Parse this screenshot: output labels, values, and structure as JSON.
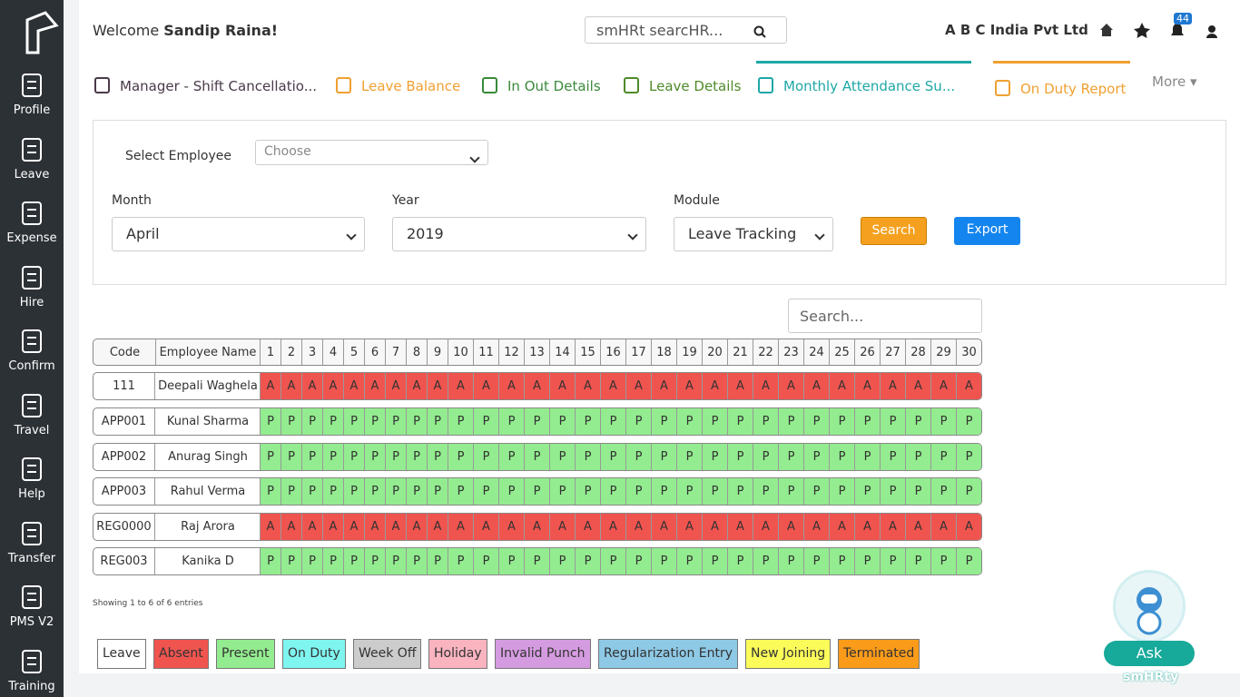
{
  "sidebar": [
    "Profile",
    "Leave",
    "Expense",
    "Hire",
    "Confirm",
    "Travel",
    "Help",
    "Transfer",
    "PMS V2",
    "Training"
  ],
  "header": {
    "welcome": "Welcome",
    "user": "Sandip Raina!",
    "search_placeholder": "smHRt searcHR...",
    "company": "A B C India Pvt Ltd",
    "notifications": 44
  },
  "tabs": [
    "Manager - Shift Cancellatio...",
    "Leave Balance",
    "In Out Details",
    "Leave Details",
    "Monthly Attendance Su...",
    "On Duty Report"
  ],
  "more": "More",
  "filters": {
    "select_employee_label": "Select Employee",
    "select_employee_placeholder": "Choose",
    "month_label": "Month",
    "month": "April",
    "year_label": "Year",
    "year": "2019",
    "module_label": "Module",
    "module": "Leave Tracking",
    "search_button": "Search",
    "export_button": "Export"
  },
  "table": {
    "search_placeholder": "Search...",
    "columns": [
      "Code",
      "Employee Name"
    ],
    "days": [
      1,
      2,
      3,
      4,
      5,
      6,
      7,
      8,
      9,
      10,
      11,
      12,
      13,
      14,
      15,
      16,
      17,
      18,
      19,
      20,
      21,
      22,
      23,
      24,
      25,
      26,
      27,
      28,
      29,
      30
    ],
    "status_colors": {
      "A": "#f0544f",
      "P": "#93ec8f"
    },
    "rows": [
      {
        "code": "111",
        "name": "Deepali Waghela",
        "attendance": [
          "A",
          "A",
          "A",
          "A",
          "A",
          "A",
          "A",
          "A",
          "A",
          "A",
          "A",
          "A",
          "A",
          "A",
          "A",
          "A",
          "A",
          "A",
          "A",
          "A",
          "A",
          "A",
          "A",
          "A",
          "A",
          "A",
          "A",
          "A",
          "A",
          "A"
        ]
      },
      {
        "code": "APP001",
        "name": "Kunal Sharma",
        "attendance": [
          "P",
          "P",
          "P",
          "P",
          "P",
          "P",
          "P",
          "P",
          "P",
          "P",
          "P",
          "P",
          "P",
          "P",
          "P",
          "P",
          "P",
          "P",
          "P",
          "P",
          "P",
          "P",
          "P",
          "P",
          "P",
          "P",
          "P",
          "P",
          "P",
          "P"
        ]
      },
      {
        "code": "APP002",
        "name": "Anurag Singh",
        "attendance": [
          "P",
          "P",
          "P",
          "P",
          "P",
          "P",
          "P",
          "P",
          "P",
          "P",
          "P",
          "P",
          "P",
          "P",
          "P",
          "P",
          "P",
          "P",
          "P",
          "P",
          "P",
          "P",
          "P",
          "P",
          "P",
          "P",
          "P",
          "P",
          "P",
          "P"
        ]
      },
      {
        "code": "APP003",
        "name": "Rahul Verma",
        "attendance": [
          "P",
          "P",
          "P",
          "P",
          "P",
          "P",
          "P",
          "P",
          "P",
          "P",
          "P",
          "P",
          "P",
          "P",
          "P",
          "P",
          "P",
          "P",
          "P",
          "P",
          "P",
          "P",
          "P",
          "P",
          "P",
          "P",
          "P",
          "P",
          "P",
          "P"
        ]
      },
      {
        "code": "REG0000",
        "name": "Raj Arora",
        "attendance": [
          "A",
          "A",
          "A",
          "A",
          "A",
          "A",
          "A",
          "A",
          "A",
          "A",
          "A",
          "A",
          "A",
          "A",
          "A",
          "A",
          "A",
          "A",
          "A",
          "A",
          "A",
          "A",
          "A",
          "A",
          "A",
          "A",
          "A",
          "A",
          "A",
          "A"
        ]
      },
      {
        "code": "REG003",
        "name": "Kanika D",
        "attendance": [
          "P",
          "P",
          "P",
          "P",
          "P",
          "P",
          "P",
          "P",
          "P",
          "P",
          "P",
          "P",
          "P",
          "P",
          "P",
          "P",
          "P",
          "P",
          "P",
          "P",
          "P",
          "P",
          "P",
          "P",
          "P",
          "P",
          "P",
          "P",
          "P",
          "P"
        ]
      }
    ],
    "info": "Showing 1 to 6 of 6 entries"
  },
  "legend": [
    {
      "label": "Leave",
      "color": "#ffffff"
    },
    {
      "label": "Absent",
      "color": "#f0544f"
    },
    {
      "label": "Present",
      "color": "#93ec8f"
    },
    {
      "label": "On Duty",
      "color": "#7ff5f0"
    },
    {
      "label": "Week Off",
      "color": "#cccccc"
    },
    {
      "label": "Holiday",
      "color": "#f9b4c0"
    },
    {
      "label": "Invalid Punch",
      "color": "#d59be0"
    },
    {
      "label": "Regularization Entry",
      "color": "#8ec9e6"
    },
    {
      "label": "New Joining",
      "color": "#fbfb5a"
    },
    {
      "label": "Terminated",
      "color": "#fb9b1a"
    }
  ],
  "chatbot": {
    "label": "Ask",
    "sublabel": "smHRty"
  }
}
